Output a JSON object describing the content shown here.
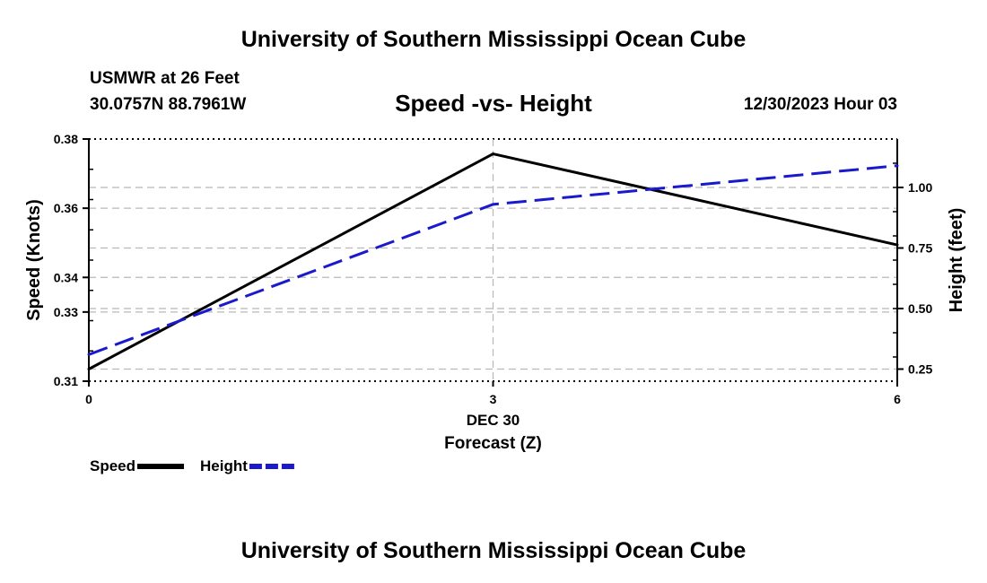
{
  "header": {
    "title": "University of Southern Mississippi Ocean Cube",
    "station": "USMWR at 26 Feet",
    "coords": "30.0757N  88.7961W",
    "chart_title": "Speed -vs- Height",
    "date": "12/30/2023 Hour 03"
  },
  "footer": {
    "title": "University of Southern Mississippi Ocean Cube"
  },
  "chart_data": {
    "type": "line",
    "title": "Speed -vs- Height",
    "xlabel": "Forecast (Z)",
    "x_sublabel": "DEC 30",
    "x": [
      0,
      3,
      6
    ],
    "xlim": [
      0,
      6
    ],
    "x_ticks": [
      "0",
      "3",
      "6"
    ],
    "left_axis": {
      "label": "Speed (Knots)",
      "ylim": [
        0.31,
        0.38
      ],
      "ticks": [
        0.31,
        0.33,
        0.34,
        0.36,
        0.38
      ],
      "tick_labels": [
        "0.31",
        "0.33",
        "0.34",
        "0.36",
        "0.38"
      ]
    },
    "right_axis": {
      "label": "Height (feet)",
      "ylim": [
        0.2,
        1.2
      ],
      "ticks": [
        0.25,
        0.5,
        0.75,
        1.0
      ],
      "tick_labels": [
        "0.25",
        "0.50",
        "0.75",
        "1.00"
      ]
    },
    "grid": true,
    "series": [
      {
        "name": "Speed",
        "axis": "left",
        "style": "solid",
        "color": "#000000",
        "values": [
          0.3135,
          0.3757,
          0.3494
        ]
      },
      {
        "name": "Height",
        "axis": "right",
        "style": "dashed",
        "color": "#1a1acc",
        "values": [
          0.31,
          0.93,
          1.09
        ]
      }
    ],
    "legend": [
      {
        "label": "Speed",
        "color": "#000000",
        "style": "solid"
      },
      {
        "label": "Height",
        "color": "#1a1acc",
        "style": "dashed"
      }
    ]
  }
}
